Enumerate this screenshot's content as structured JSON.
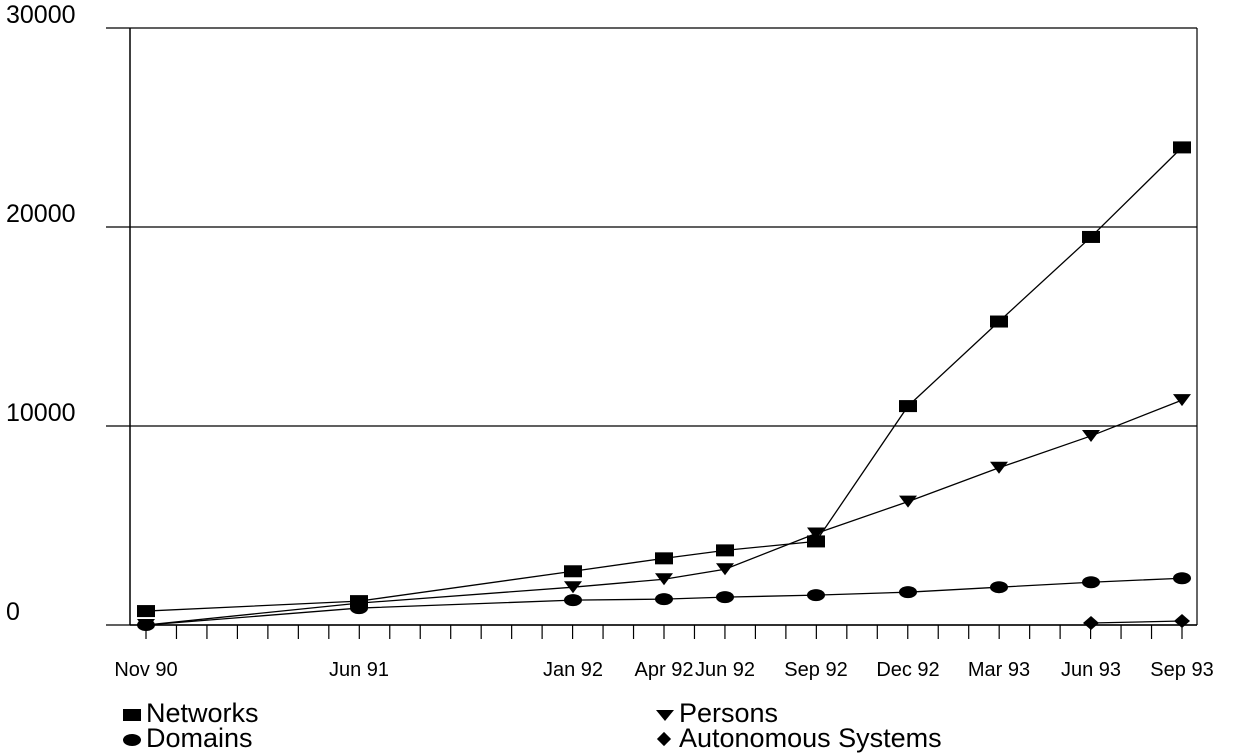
{
  "chart_data": {
    "type": "line",
    "x_categories": [
      "Nov 90",
      "Jun 91",
      "Jan 92",
      "Apr 92",
      "Jun 92",
      "Sep 92",
      "Dec 92",
      "Mar 93",
      "Jun 93",
      "Sep 93"
    ],
    "y_tick_labels": [
      "0",
      "10000",
      "20000",
      "30000"
    ],
    "ylim": [
      0,
      30000
    ],
    "grid": "horizontal",
    "legend_position": "bottom",
    "series": [
      {
        "name": "Networks",
        "marker": "square",
        "points": [
          {
            "x": "Nov 90",
            "y": 700
          },
          {
            "x": "Jun 91",
            "y": 1200
          },
          {
            "x": "Jan 92",
            "y": 2700
          },
          {
            "x": "Apr 92",
            "y": 3350
          },
          {
            "x": "Jun 92",
            "y": 3750
          },
          {
            "x": "Sep 92",
            "y": 4200
          },
          {
            "x": "Dec 92",
            "y": 11000
          },
          {
            "x": "Mar 93",
            "y": 15250
          },
          {
            "x": "Jun 93",
            "y": 19500
          },
          {
            "x": "Sep 93",
            "y": 24000
          }
        ]
      },
      {
        "name": "Persons",
        "marker": "triangle-down",
        "points": [
          {
            "x": "Nov 90",
            "y": 0
          },
          {
            "x": "Jun 91",
            "y": 1100
          },
          {
            "x": "Jan 92",
            "y": 1900
          },
          {
            "x": "Apr 92",
            "y": 2300
          },
          {
            "x": "Jun 92",
            "y": 2800
          },
          {
            "x": "Sep 92",
            "y": 4600
          },
          {
            "x": "Dec 92",
            "y": 6200
          },
          {
            "x": "Mar 93",
            "y": 7900
          },
          {
            "x": "Jun 93",
            "y": 9500
          },
          {
            "x": "Sep 93",
            "y": 11300
          }
        ]
      },
      {
        "name": "Domains",
        "marker": "circle",
        "points": [
          {
            "x": "Nov 90",
            "y": 0
          },
          {
            "x": "Jun 91",
            "y": 850
          },
          {
            "x": "Jan 92",
            "y": 1250
          },
          {
            "x": "Apr 92",
            "y": 1300
          },
          {
            "x": "Jun 92",
            "y": 1400
          },
          {
            "x": "Sep 92",
            "y": 1500
          },
          {
            "x": "Dec 92",
            "y": 1650
          },
          {
            "x": "Mar 93",
            "y": 1900
          },
          {
            "x": "Jun 93",
            "y": 2150
          },
          {
            "x": "Sep 93",
            "y": 2350
          }
        ]
      },
      {
        "name": "Autonomous Systems",
        "marker": "diamond",
        "points": [
          {
            "x": "Jun 93",
            "y": 100
          },
          {
            "x": "Sep 93",
            "y": 200
          }
        ]
      }
    ]
  }
}
